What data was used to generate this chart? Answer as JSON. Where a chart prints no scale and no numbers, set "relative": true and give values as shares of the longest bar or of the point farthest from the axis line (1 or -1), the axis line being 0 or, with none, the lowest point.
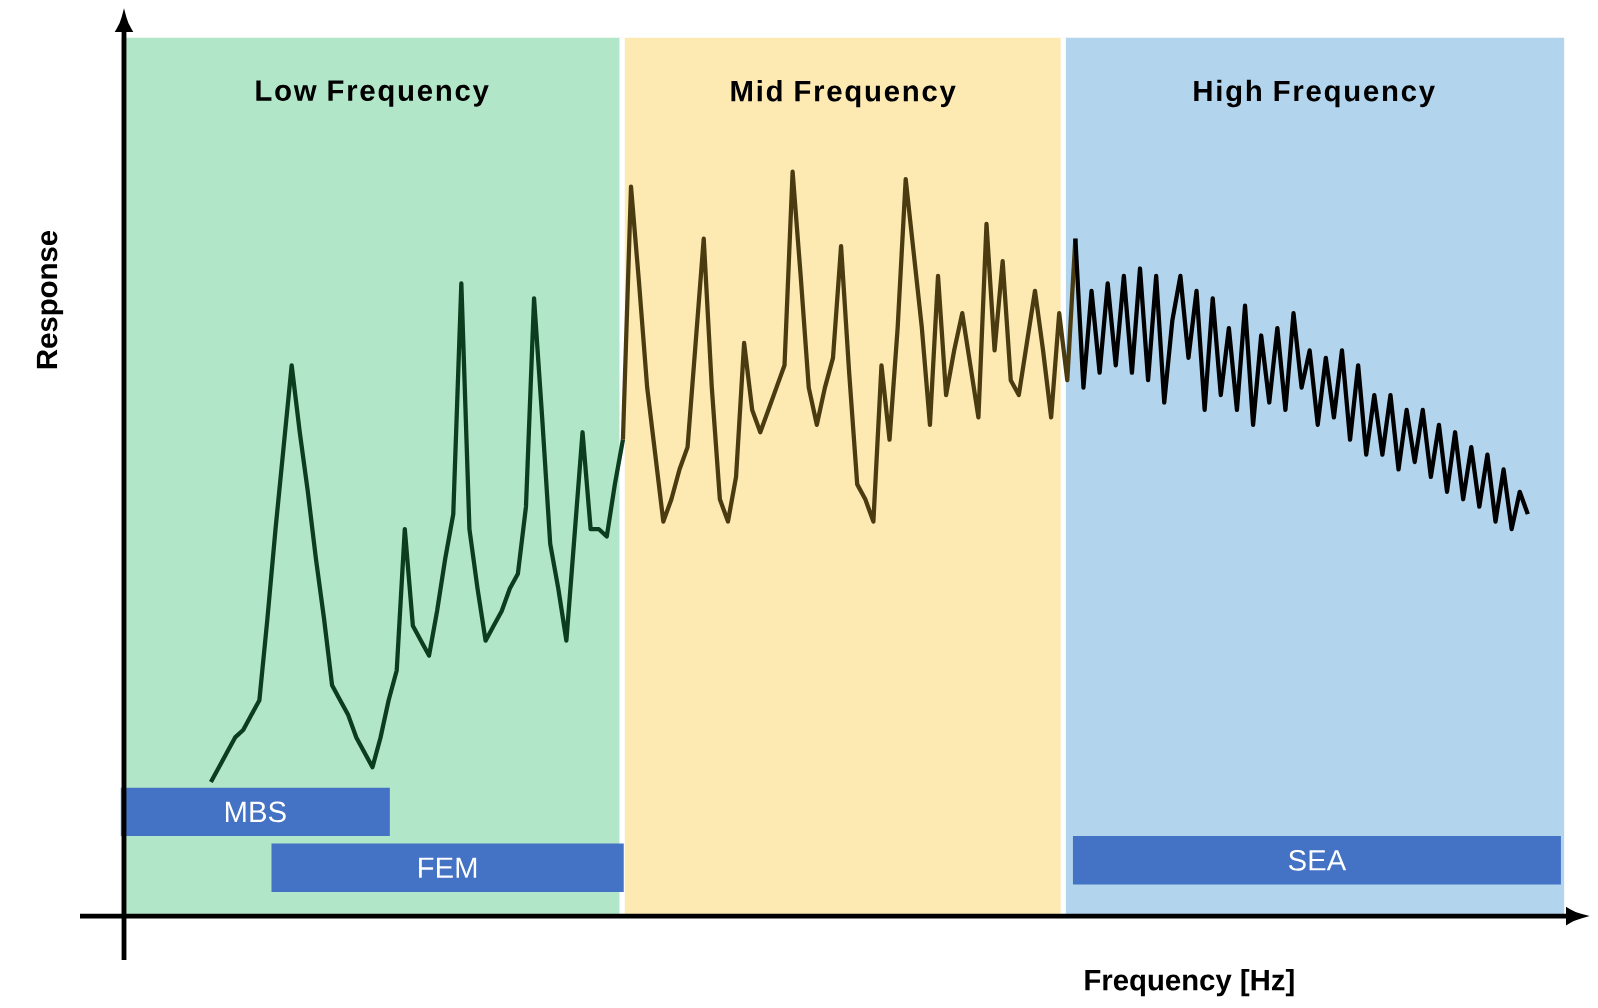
{
  "chart_data": {
    "type": "line",
    "relative": true,
    "xlabel": "Frequency [Hz]",
    "ylabel": "Response",
    "categories": [
      null,
      null,
      null,
      null,
      null,
      null,
      null,
      null,
      null,
      null,
      null,
      null,
      null,
      null,
      null,
      null,
      null,
      null,
      null,
      null,
      null,
      null,
      null,
      null,
      null,
      null,
      null,
      null,
      null,
      null,
      null,
      null,
      null,
      null,
      null,
      null,
      null,
      null,
      null,
      null,
      null,
      null,
      null,
      null,
      null,
      null,
      null,
      null,
      null,
      null,
      null,
      null,
      null,
      null,
      null,
      null,
      null,
      null,
      null,
      null,
      null,
      null,
      null,
      null,
      null,
      null,
      null,
      null,
      null,
      null,
      null,
      null,
      null,
      null,
      null,
      null,
      null,
      null,
      null,
      null,
      null,
      null,
      null,
      null,
      null,
      null,
      null,
      null,
      null,
      null,
      null,
      null,
      null,
      null,
      null,
      null,
      null,
      null,
      null,
      null,
      null,
      null,
      null,
      null,
      null,
      null,
      null,
      null,
      null,
      null,
      null,
      null,
      null,
      null,
      null,
      null,
      null,
      null,
      null,
      null,
      null,
      null,
      null,
      null,
      null,
      null,
      null,
      null,
      null,
      null,
      null,
      null,
      null,
      null,
      null,
      null,
      null,
      null,
      null,
      null,
      null,
      null,
      null,
      null,
      null,
      null,
      null,
      null,
      null,
      null,
      null,
      null,
      null,
      null,
      null,
      null,
      null,
      null,
      null,
      null,
      null,
      null,
      null,
      null
    ],
    "series": [
      {
        "color": "#0b3d1e",
        "values": [
          0.18,
          0.2,
          0.22,
          0.24,
          0.25,
          0.27,
          0.29,
          0.4,
          0.52,
          0.63,
          0.74,
          0.65,
          0.57,
          0.48,
          0.4,
          0.31,
          0.29,
          0.27,
          0.24,
          0.22,
          0.2,
          0.24,
          0.29,
          0.33,
          0.52,
          0.39,
          0.37,
          0.35,
          0.41,
          0.48,
          0.54,
          0.85,
          0.52,
          0.44,
          0.37,
          0.39,
          0.41,
          0.44,
          0.46,
          0.55,
          0.83,
          0.67,
          0.5,
          0.44,
          0.37,
          0.51,
          0.65,
          0.52,
          0.52,
          0.51,
          0.58,
          0.64,
          null,
          null,
          null,
          null,
          null,
          null,
          null,
          null,
          null,
          null,
          null,
          null,
          null,
          null,
          null,
          null,
          null,
          null,
          null,
          null,
          null,
          null,
          null,
          null,
          null,
          null,
          null,
          null,
          null,
          null,
          null,
          null,
          null,
          null,
          null,
          null,
          null,
          null,
          null,
          null,
          null,
          null,
          null,
          null,
          null,
          null,
          null,
          null,
          null,
          null,
          null,
          null,
          null,
          null,
          null,
          null,
          null,
          null,
          null,
          null,
          null,
          null,
          null,
          null,
          null,
          null,
          null,
          null,
          null,
          null,
          null,
          null,
          null,
          null,
          null,
          null,
          null,
          null,
          null,
          null,
          null,
          null,
          null,
          null,
          null,
          null,
          null,
          null,
          null,
          null,
          null,
          null,
          null,
          null,
          null,
          null,
          null,
          null,
          null,
          null,
          null,
          null,
          null,
          null,
          null,
          null,
          null,
          null,
          null,
          null,
          null,
          null
        ]
      },
      {
        "color": "#4a3b10",
        "values": [
          null,
          null,
          null,
          null,
          null,
          null,
          null,
          null,
          null,
          null,
          null,
          null,
          null,
          null,
          null,
          null,
          null,
          null,
          null,
          null,
          null,
          null,
          null,
          null,
          null,
          null,
          null,
          null,
          null,
          null,
          null,
          null,
          null,
          null,
          null,
          null,
          null,
          null,
          null,
          null,
          null,
          null,
          null,
          null,
          null,
          null,
          null,
          null,
          null,
          null,
          null,
          0.64,
          0.98,
          0.85,
          0.71,
          0.62,
          0.53,
          0.56,
          0.6,
          0.63,
          0.77,
          0.91,
          0.71,
          0.56,
          0.53,
          0.59,
          0.77,
          0.68,
          0.65,
          0.68,
          0.71,
          0.74,
          1.0,
          0.86,
          0.71,
          0.66,
          0.71,
          0.75,
          0.9,
          0.73,
          0.58,
          0.56,
          0.53,
          0.74,
          0.64,
          0.79,
          0.99,
          0.89,
          0.79,
          0.66,
          0.86,
          0.7,
          0.76,
          0.81,
          0.74,
          0.67,
          0.93,
          0.76,
          0.88,
          0.72,
          0.7,
          0.77,
          0.84,
          0.76,
          0.67,
          0.81,
          0.72,
          0.91,
          null,
          null,
          null,
          null,
          null,
          null,
          null,
          null,
          null,
          null,
          null,
          null,
          null,
          null,
          null,
          null,
          null,
          null,
          null,
          null,
          null,
          null,
          null,
          null,
          null,
          null,
          null,
          null,
          null,
          null,
          null,
          null,
          null,
          null,
          null,
          null,
          null,
          null,
          null,
          null,
          null,
          null,
          null,
          null,
          null,
          null,
          null,
          null,
          null,
          null,
          null,
          null,
          null,
          null,
          null,
          null
        ]
      },
      {
        "color": "#000000",
        "values": [
          null,
          null,
          null,
          null,
          null,
          null,
          null,
          null,
          null,
          null,
          null,
          null,
          null,
          null,
          null,
          null,
          null,
          null,
          null,
          null,
          null,
          null,
          null,
          null,
          null,
          null,
          null,
          null,
          null,
          null,
          null,
          null,
          null,
          null,
          null,
          null,
          null,
          null,
          null,
          null,
          null,
          null,
          null,
          null,
          null,
          null,
          null,
          null,
          null,
          null,
          null,
          null,
          null,
          null,
          null,
          null,
          null,
          null,
          null,
          null,
          null,
          null,
          null,
          null,
          null,
          null,
          null,
          null,
          null,
          null,
          null,
          null,
          null,
          null,
          null,
          null,
          null,
          null,
          null,
          null,
          null,
          null,
          null,
          null,
          null,
          null,
          null,
          null,
          null,
          null,
          null,
          null,
          null,
          null,
          null,
          null,
          null,
          null,
          null,
          null,
          null,
          null,
          null,
          null,
          null,
          null,
          null,
          0.91,
          0.71,
          0.84,
          0.73,
          0.85,
          0.74,
          0.86,
          0.73,
          0.87,
          0.72,
          0.86,
          0.69,
          0.8,
          0.86,
          0.75,
          0.84,
          0.68,
          0.83,
          0.7,
          0.79,
          0.68,
          0.82,
          0.66,
          0.78,
          0.69,
          0.79,
          0.68,
          0.81,
          0.71,
          0.76,
          0.66,
          0.75,
          0.67,
          0.76,
          0.64,
          0.74,
          0.62,
          0.7,
          0.62,
          0.7,
          0.6,
          0.68,
          0.61,
          0.68,
          0.59,
          0.66,
          0.57,
          0.65,
          0.56,
          0.63,
          0.55,
          0.62,
          0.53,
          0.6,
          0.52,
          0.57,
          0.54
        ]
      }
    ],
    "annotations": [
      "Low Frequency",
      "Mid Frequency",
      "High Frequency",
      "MBS",
      "FEM",
      "SEA"
    ]
  }
}
